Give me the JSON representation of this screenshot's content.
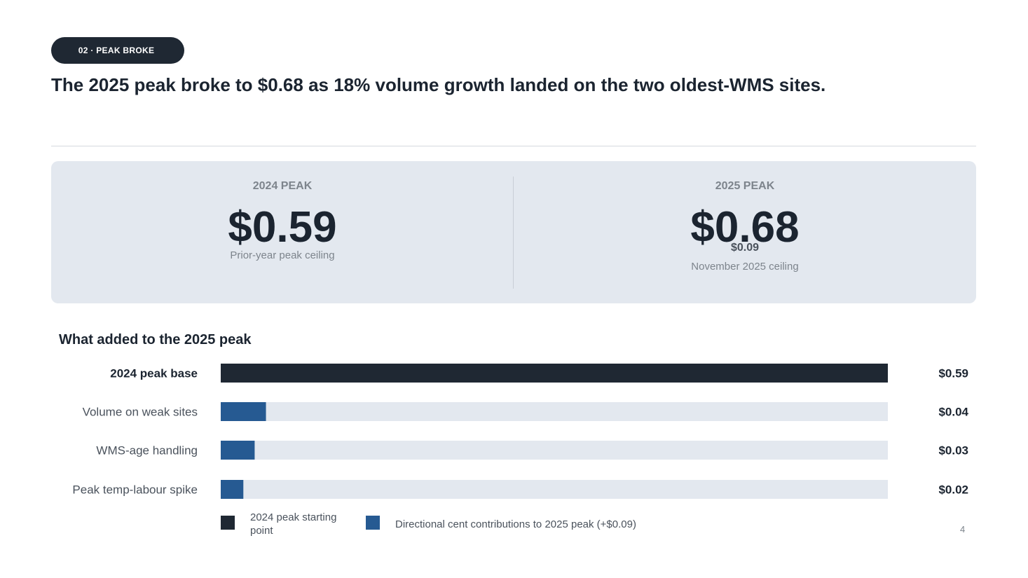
{
  "section_pill": "02 · PEAK BROKE",
  "headline": "The 2025 peak broke to $0.68 as 18% volume growth landed on the two oldest-WMS sites.",
  "kpis": {
    "left": {
      "label": "2024 PEAK",
      "value": "$0.59",
      "note": "Prior-year peak ceiling"
    },
    "right": {
      "label": "2025 PEAK",
      "value": "$0.68",
      "delta": "$0.09",
      "note": "November 2025 ceiling"
    }
  },
  "chart_data": {
    "type": "bar",
    "orientation": "horizontal",
    "title": "What added to the 2025 peak",
    "xlim": [
      0,
      0.59
    ],
    "categories": [
      "2024 peak base",
      "Volume on weak sites",
      "WMS-age handling",
      "Peak temp-labour spike"
    ],
    "values": [
      0.59,
      0.04,
      0.03,
      0.02
    ],
    "value_labels": [
      "$0.59",
      "$0.04",
      "$0.03",
      "$0.02"
    ],
    "bar_colors": [
      "#1f2833",
      "#265a92",
      "#265a92",
      "#265a92"
    ],
    "track_color": "#e3e8ef",
    "legend": [
      {
        "label": "2024 peak starting point",
        "color": "#1f2833"
      },
      {
        "label": "Directional cent contributions to 2025 peak (+$0.09)",
        "color": "#265a92"
      }
    ],
    "legend_position": "bottom-left"
  },
  "page_number": "4"
}
